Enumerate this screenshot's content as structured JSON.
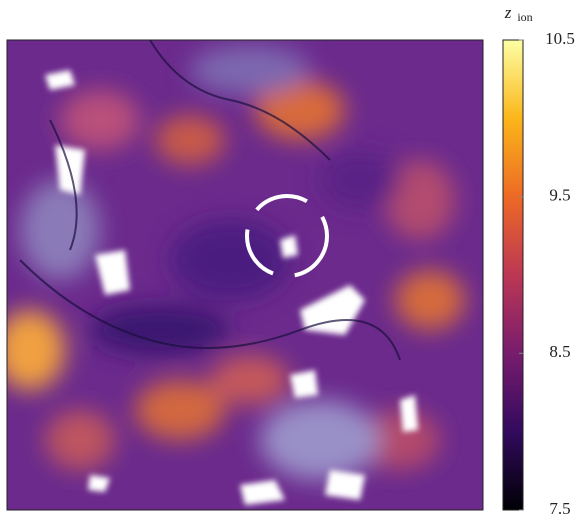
{
  "chart_data": {
    "type": "heatmap",
    "colorbar": {
      "label": "z",
      "label_subscript": "ion",
      "lim": [
        7.5,
        10.5
      ],
      "ticks": [
        7.5,
        8.5,
        9.5,
        10.5
      ],
      "colors": [
        "#000004",
        "#320a5e",
        "#781c6d",
        "#bc3754",
        "#ed6925",
        "#fbb61a",
        "#fcffa4"
      ]
    }
  }
}
